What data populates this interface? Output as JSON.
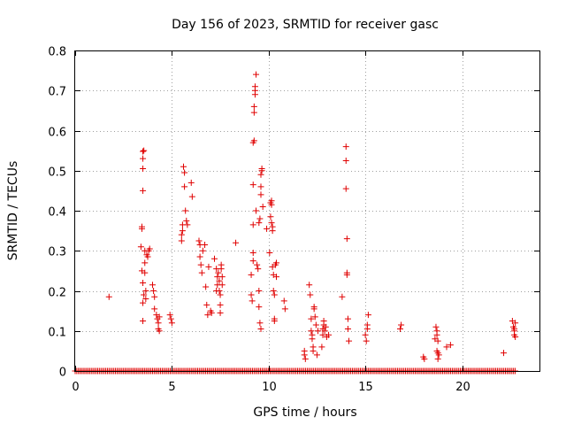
{
  "chart_data": {
    "type": "scatter",
    "title": "Day 156 of 2023, SRMTID for receiver gasc",
    "xlabel": "GPS time / hours",
    "ylabel": "SRMTID / TECUs",
    "xlim": [
      0,
      24
    ],
    "ylim": [
      0,
      0.8
    ],
    "xticks": [
      "0",
      "5",
      "10",
      "15",
      "20"
    ],
    "yticks": [
      "0",
      "0.1",
      "0.2",
      "0.3",
      "0.4",
      "0.5",
      "0.6",
      "0.7",
      "0.8"
    ],
    "xtick_values": [
      0,
      5,
      10,
      15,
      20
    ],
    "ytick_values": [
      0,
      0.1,
      0.2,
      0.3,
      0.4,
      0.5,
      0.6,
      0.7,
      0.8
    ],
    "grid": true,
    "marker": "plus",
    "color": "#e00000",
    "zero_baseline": {
      "from": 0.0,
      "to": 22.8,
      "step": 0.0833,
      "y": 0
    },
    "series": [
      {
        "name": "SRMTID",
        "points": [
          [
            1.75,
            0.185
          ],
          [
            3.4,
            0.31
          ],
          [
            3.45,
            0.355
          ],
          [
            3.45,
            0.36
          ],
          [
            3.5,
            0.45
          ],
          [
            3.5,
            0.505
          ],
          [
            3.5,
            0.53
          ],
          [
            3.5,
            0.548
          ],
          [
            3.55,
            0.55
          ],
          [
            3.45,
            0.25
          ],
          [
            3.5,
            0.22
          ],
          [
            3.55,
            0.19
          ],
          [
            3.5,
            0.17
          ],
          [
            3.5,
            0.125
          ],
          [
            3.6,
            0.27
          ],
          [
            3.6,
            0.3
          ],
          [
            3.6,
            0.245
          ],
          [
            3.65,
            0.2
          ],
          [
            3.65,
            0.18
          ],
          [
            3.7,
            0.29
          ],
          [
            3.75,
            0.285
          ],
          [
            3.8,
            0.3
          ],
          [
            3.85,
            0.305
          ],
          [
            4.0,
            0.215
          ],
          [
            4.05,
            0.2
          ],
          [
            4.1,
            0.185
          ],
          [
            4.1,
            0.155
          ],
          [
            4.2,
            0.14
          ],
          [
            4.25,
            0.13
          ],
          [
            4.3,
            0.12
          ],
          [
            4.3,
            0.105
          ],
          [
            4.35,
            0.1
          ],
          [
            4.35,
            0.135
          ],
          [
            4.9,
            0.14
          ],
          [
            4.95,
            0.13
          ],
          [
            5.0,
            0.12
          ],
          [
            5.5,
            0.325
          ],
          [
            5.5,
            0.34
          ],
          [
            5.55,
            0.35
          ],
          [
            5.55,
            0.365
          ],
          [
            5.6,
            0.51
          ],
          [
            5.65,
            0.495
          ],
          [
            5.65,
            0.46
          ],
          [
            5.7,
            0.4
          ],
          [
            5.75,
            0.375
          ],
          [
            5.8,
            0.365
          ],
          [
            6.0,
            0.47
          ],
          [
            6.05,
            0.435
          ],
          [
            6.4,
            0.325
          ],
          [
            6.45,
            0.315
          ],
          [
            6.45,
            0.285
          ],
          [
            6.5,
            0.265
          ],
          [
            6.55,
            0.245
          ],
          [
            6.6,
            0.3
          ],
          [
            6.7,
            0.315
          ],
          [
            6.75,
            0.21
          ],
          [
            6.8,
            0.165
          ],
          [
            6.85,
            0.14
          ],
          [
            6.9,
            0.26
          ],
          [
            7.0,
            0.15
          ],
          [
            7.05,
            0.145
          ],
          [
            7.2,
            0.28
          ],
          [
            7.3,
            0.255
          ],
          [
            7.3,
            0.2
          ],
          [
            7.35,
            0.215
          ],
          [
            7.35,
            0.235
          ],
          [
            7.4,
            0.245
          ],
          [
            7.45,
            0.225
          ],
          [
            7.45,
            0.2
          ],
          [
            7.5,
            0.19
          ],
          [
            7.5,
            0.165
          ],
          [
            7.5,
            0.145
          ],
          [
            7.55,
            0.255
          ],
          [
            7.55,
            0.265
          ],
          [
            7.6,
            0.235
          ],
          [
            7.6,
            0.215
          ],
          [
            8.3,
            0.32
          ],
          [
            9.1,
            0.24
          ],
          [
            9.1,
            0.19
          ],
          [
            9.15,
            0.175
          ],
          [
            9.2,
            0.295
          ],
          [
            9.2,
            0.275
          ],
          [
            9.2,
            0.365
          ],
          [
            9.2,
            0.465
          ],
          [
            9.2,
            0.57
          ],
          [
            9.25,
            0.575
          ],
          [
            9.25,
            0.645
          ],
          [
            9.25,
            0.66
          ],
          [
            9.3,
            0.69
          ],
          [
            9.3,
            0.7
          ],
          [
            9.3,
            0.71
          ],
          [
            9.35,
            0.74
          ],
          [
            9.35,
            0.4
          ],
          [
            9.4,
            0.265
          ],
          [
            9.45,
            0.255
          ],
          [
            9.5,
            0.2
          ],
          [
            9.5,
            0.37
          ],
          [
            9.55,
            0.38
          ],
          [
            9.6,
            0.44
          ],
          [
            9.6,
            0.46
          ],
          [
            9.6,
            0.49
          ],
          [
            9.65,
            0.505
          ],
          [
            9.65,
            0.5
          ],
          [
            9.5,
            0.16
          ],
          [
            9.55,
            0.12
          ],
          [
            9.6,
            0.105
          ],
          [
            9.7,
            0.41
          ],
          [
            9.9,
            0.355
          ],
          [
            10.05,
            0.295
          ],
          [
            10.1,
            0.385
          ],
          [
            10.1,
            0.42
          ],
          [
            10.15,
            0.425
          ],
          [
            10.15,
            0.415
          ],
          [
            10.15,
            0.37
          ],
          [
            10.2,
            0.35
          ],
          [
            10.2,
            0.36
          ],
          [
            10.2,
            0.26
          ],
          [
            10.25,
            0.24
          ],
          [
            10.25,
            0.2
          ],
          [
            10.3,
            0.19
          ],
          [
            10.3,
            0.13
          ],
          [
            10.3,
            0.125
          ],
          [
            10.35,
            0.265
          ],
          [
            10.4,
            0.27
          ],
          [
            10.4,
            0.235
          ],
          [
            10.8,
            0.175
          ],
          [
            10.85,
            0.155
          ],
          [
            11.85,
            0.05
          ],
          [
            11.85,
            0.04
          ],
          [
            11.9,
            0.03
          ],
          [
            12.1,
            0.215
          ],
          [
            12.15,
            0.19
          ],
          [
            12.2,
            0.13
          ],
          [
            12.2,
            0.1
          ],
          [
            12.25,
            0.09
          ],
          [
            12.25,
            0.08
          ],
          [
            12.3,
            0.06
          ],
          [
            12.3,
            0.05
          ],
          [
            12.35,
            0.155
          ],
          [
            12.35,
            0.16
          ],
          [
            12.4,
            0.135
          ],
          [
            12.45,
            0.115
          ],
          [
            12.5,
            0.04
          ],
          [
            12.55,
            0.1
          ],
          [
            12.75,
            0.06
          ],
          [
            12.8,
            0.105
          ],
          [
            12.8,
            0.09
          ],
          [
            12.85,
            0.115
          ],
          [
            12.85,
            0.125
          ],
          [
            12.9,
            0.1
          ],
          [
            12.95,
            0.11
          ],
          [
            13.0,
            0.085
          ],
          [
            13.1,
            0.09
          ],
          [
            13.8,
            0.185
          ],
          [
            14.0,
            0.56
          ],
          [
            14.0,
            0.525
          ],
          [
            14.0,
            0.455
          ],
          [
            14.05,
            0.33
          ],
          [
            14.05,
            0.245
          ],
          [
            14.05,
            0.24
          ],
          [
            14.1,
            0.13
          ],
          [
            14.1,
            0.105
          ],
          [
            14.15,
            0.075
          ],
          [
            15.0,
            0.09
          ],
          [
            15.05,
            0.075
          ],
          [
            15.1,
            0.105
          ],
          [
            15.1,
            0.115
          ],
          [
            15.15,
            0.14
          ],
          [
            16.8,
            0.105
          ],
          [
            16.85,
            0.115
          ],
          [
            18.0,
            0.035
          ],
          [
            18.05,
            0.03
          ],
          [
            18.6,
            0.08
          ],
          [
            18.65,
            0.11
          ],
          [
            18.7,
            0.1
          ],
          [
            18.7,
            0.09
          ],
          [
            18.75,
            0.075
          ],
          [
            18.7,
            0.05
          ],
          [
            18.75,
            0.045
          ],
          [
            18.8,
            0.04
          ],
          [
            18.75,
            0.03
          ],
          [
            19.2,
            0.06
          ],
          [
            19.4,
            0.065
          ],
          [
            22.15,
            0.045
          ],
          [
            22.6,
            0.125
          ],
          [
            22.65,
            0.11
          ],
          [
            22.7,
            0.105
          ],
          [
            22.7,
            0.1
          ],
          [
            22.7,
            0.09
          ],
          [
            22.75,
            0.085
          ],
          [
            22.75,
            0.12
          ]
        ]
      }
    ]
  }
}
